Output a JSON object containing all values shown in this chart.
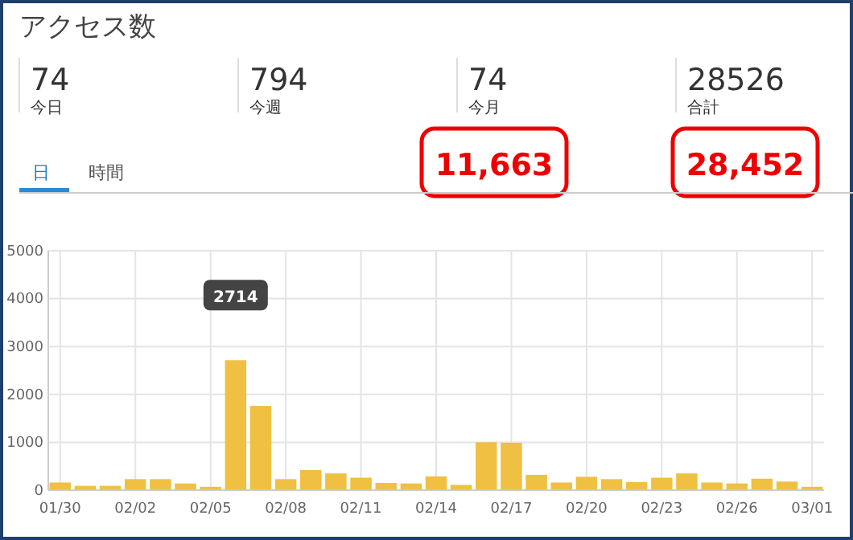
{
  "chart_data": [
    {
      "type": "other",
      "title": "アクセス数",
      "annotations": [
        "74",
        "今日",
        "794",
        "今週",
        "74",
        "今月",
        "28526",
        "合計",
        "11,663",
        "28,452",
        "日",
        "時間"
      ]
    },
    {
      "type": "bar",
      "categories": [
        "01/30",
        null,
        null,
        "02/02",
        null,
        null,
        "02/05",
        null,
        null,
        "02/08",
        null,
        null,
        "02/11",
        null,
        null,
        "02/14",
        null,
        null,
        "02/17",
        null,
        null,
        "02/20",
        null,
        null,
        "02/23",
        null,
        null,
        "02/26",
        null,
        null,
        "03/01"
      ],
      "values": [
        160,
        90,
        90,
        230,
        230,
        140,
        70,
        2714,
        1760,
        230,
        420,
        350,
        260,
        150,
        140,
        290,
        110,
        1000,
        990,
        320,
        160,
        280,
        230,
        170,
        260,
        350,
        160,
        140,
        240,
        180,
        70
      ],
      "color": "#efc041",
      "ylim": [
        0,
        5000
      ],
      "yticks": [
        0,
        1000,
        2000,
        3000,
        4000,
        5000
      ],
      "grid": true,
      "annotations": [
        "2714"
      ]
    }
  ]
}
